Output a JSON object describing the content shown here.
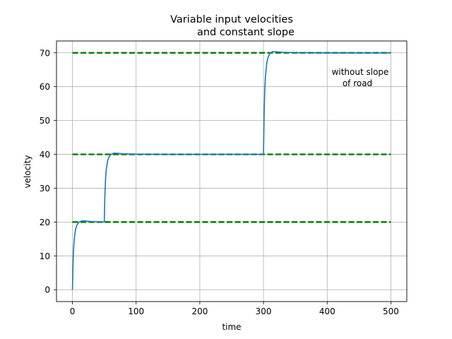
{
  "chart_data": {
    "type": "line",
    "title": [
      "Variable input velocities",
      "and constant slope"
    ],
    "xlabel": "time",
    "ylabel": "velocity",
    "xlim": [
      -25,
      525
    ],
    "ylim": [
      -3.5,
      73.5
    ],
    "xticks": [
      0,
      100,
      200,
      300,
      400,
      500
    ],
    "yticks": [
      0,
      10,
      20,
      30,
      40,
      50,
      60,
      70
    ],
    "grid": true,
    "annotation": {
      "lines": [
        "without slope",
        "of road"
      ],
      "x": 450,
      "y": 62.3
    },
    "reference_lines": [
      {
        "y": 20,
        "x": [
          0,
          500
        ],
        "color": "#008000",
        "style": "dashed"
      },
      {
        "y": 40,
        "x": [
          0,
          500
        ],
        "color": "#008000",
        "style": "dashed"
      },
      {
        "y": 70,
        "x": [
          0,
          500
        ],
        "color": "#008000",
        "style": "dashed"
      }
    ],
    "series": [
      {
        "color": "#1f77b4",
        "x": [
          0,
          1,
          2,
          3,
          5,
          7,
          10,
          15,
          20,
          30,
          40,
          49.9,
          50,
          51,
          52,
          53,
          55,
          57,
          60,
          65,
          70,
          80,
          100,
          150,
          200,
          250,
          299.9,
          300,
          301,
          302,
          303,
          305,
          307,
          310,
          315,
          320,
          330,
          350,
          400,
          450,
          500
        ],
        "y": [
          0,
          8,
          12.6,
          15.2,
          17.9,
          19.1,
          19.9,
          20.35,
          20.3,
          20.15,
          20.05,
          20,
          20,
          28,
          32.6,
          35.2,
          37.9,
          39.1,
          39.9,
          40.35,
          40.3,
          40.15,
          40.05,
          40,
          40,
          40,
          40,
          40,
          52,
          58.9,
          62.8,
          66.8,
          68.6,
          69.8,
          70.4,
          70.3,
          70.15,
          70.05,
          70,
          70,
          70
        ]
      }
    ]
  }
}
